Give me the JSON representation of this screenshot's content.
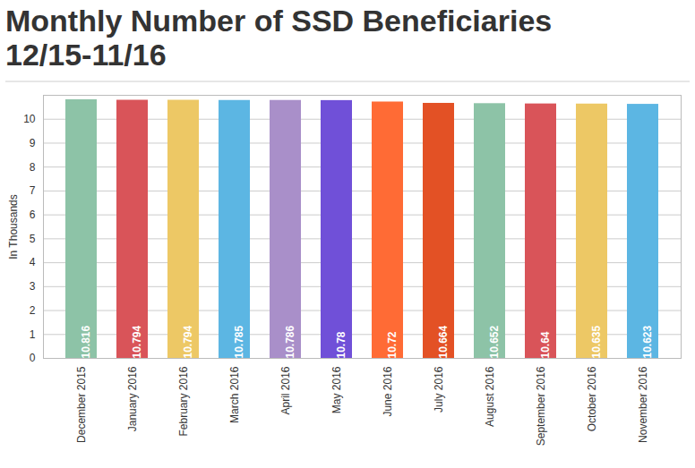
{
  "chart_data": {
    "type": "bar",
    "title": "Monthly Number of SSD Beneficiaries 12/15-11/16",
    "y_label": "In Thousands",
    "categories": [
      "December 2015",
      "January 2016",
      "February 2016",
      "March 2016",
      "April 2016",
      "May 2016",
      "June 2016",
      "July 2016",
      "August 2016",
      "September 2016",
      "October 2016",
      "November 2016"
    ],
    "values": [
      10.816,
      10.794,
      10.794,
      10.785,
      10.786,
      10.78,
      10.72,
      10.664,
      10.652,
      10.64,
      10.635,
      10.623
    ],
    "colors": [
      "#8dc3a7",
      "#d95459",
      "#edc865",
      "#5cb6e3",
      "#a98fc9",
      "#7050d8",
      "#ff6b35",
      "#e35125",
      "#8dc3a7",
      "#d95459",
      "#edc865",
      "#5cb6e3"
    ],
    "ylim": [
      0,
      11
    ],
    "yticks": [
      0,
      1,
      2,
      3,
      4,
      5,
      6,
      7,
      8,
      9,
      10
    ],
    "grid": true,
    "data_labels": true
  }
}
